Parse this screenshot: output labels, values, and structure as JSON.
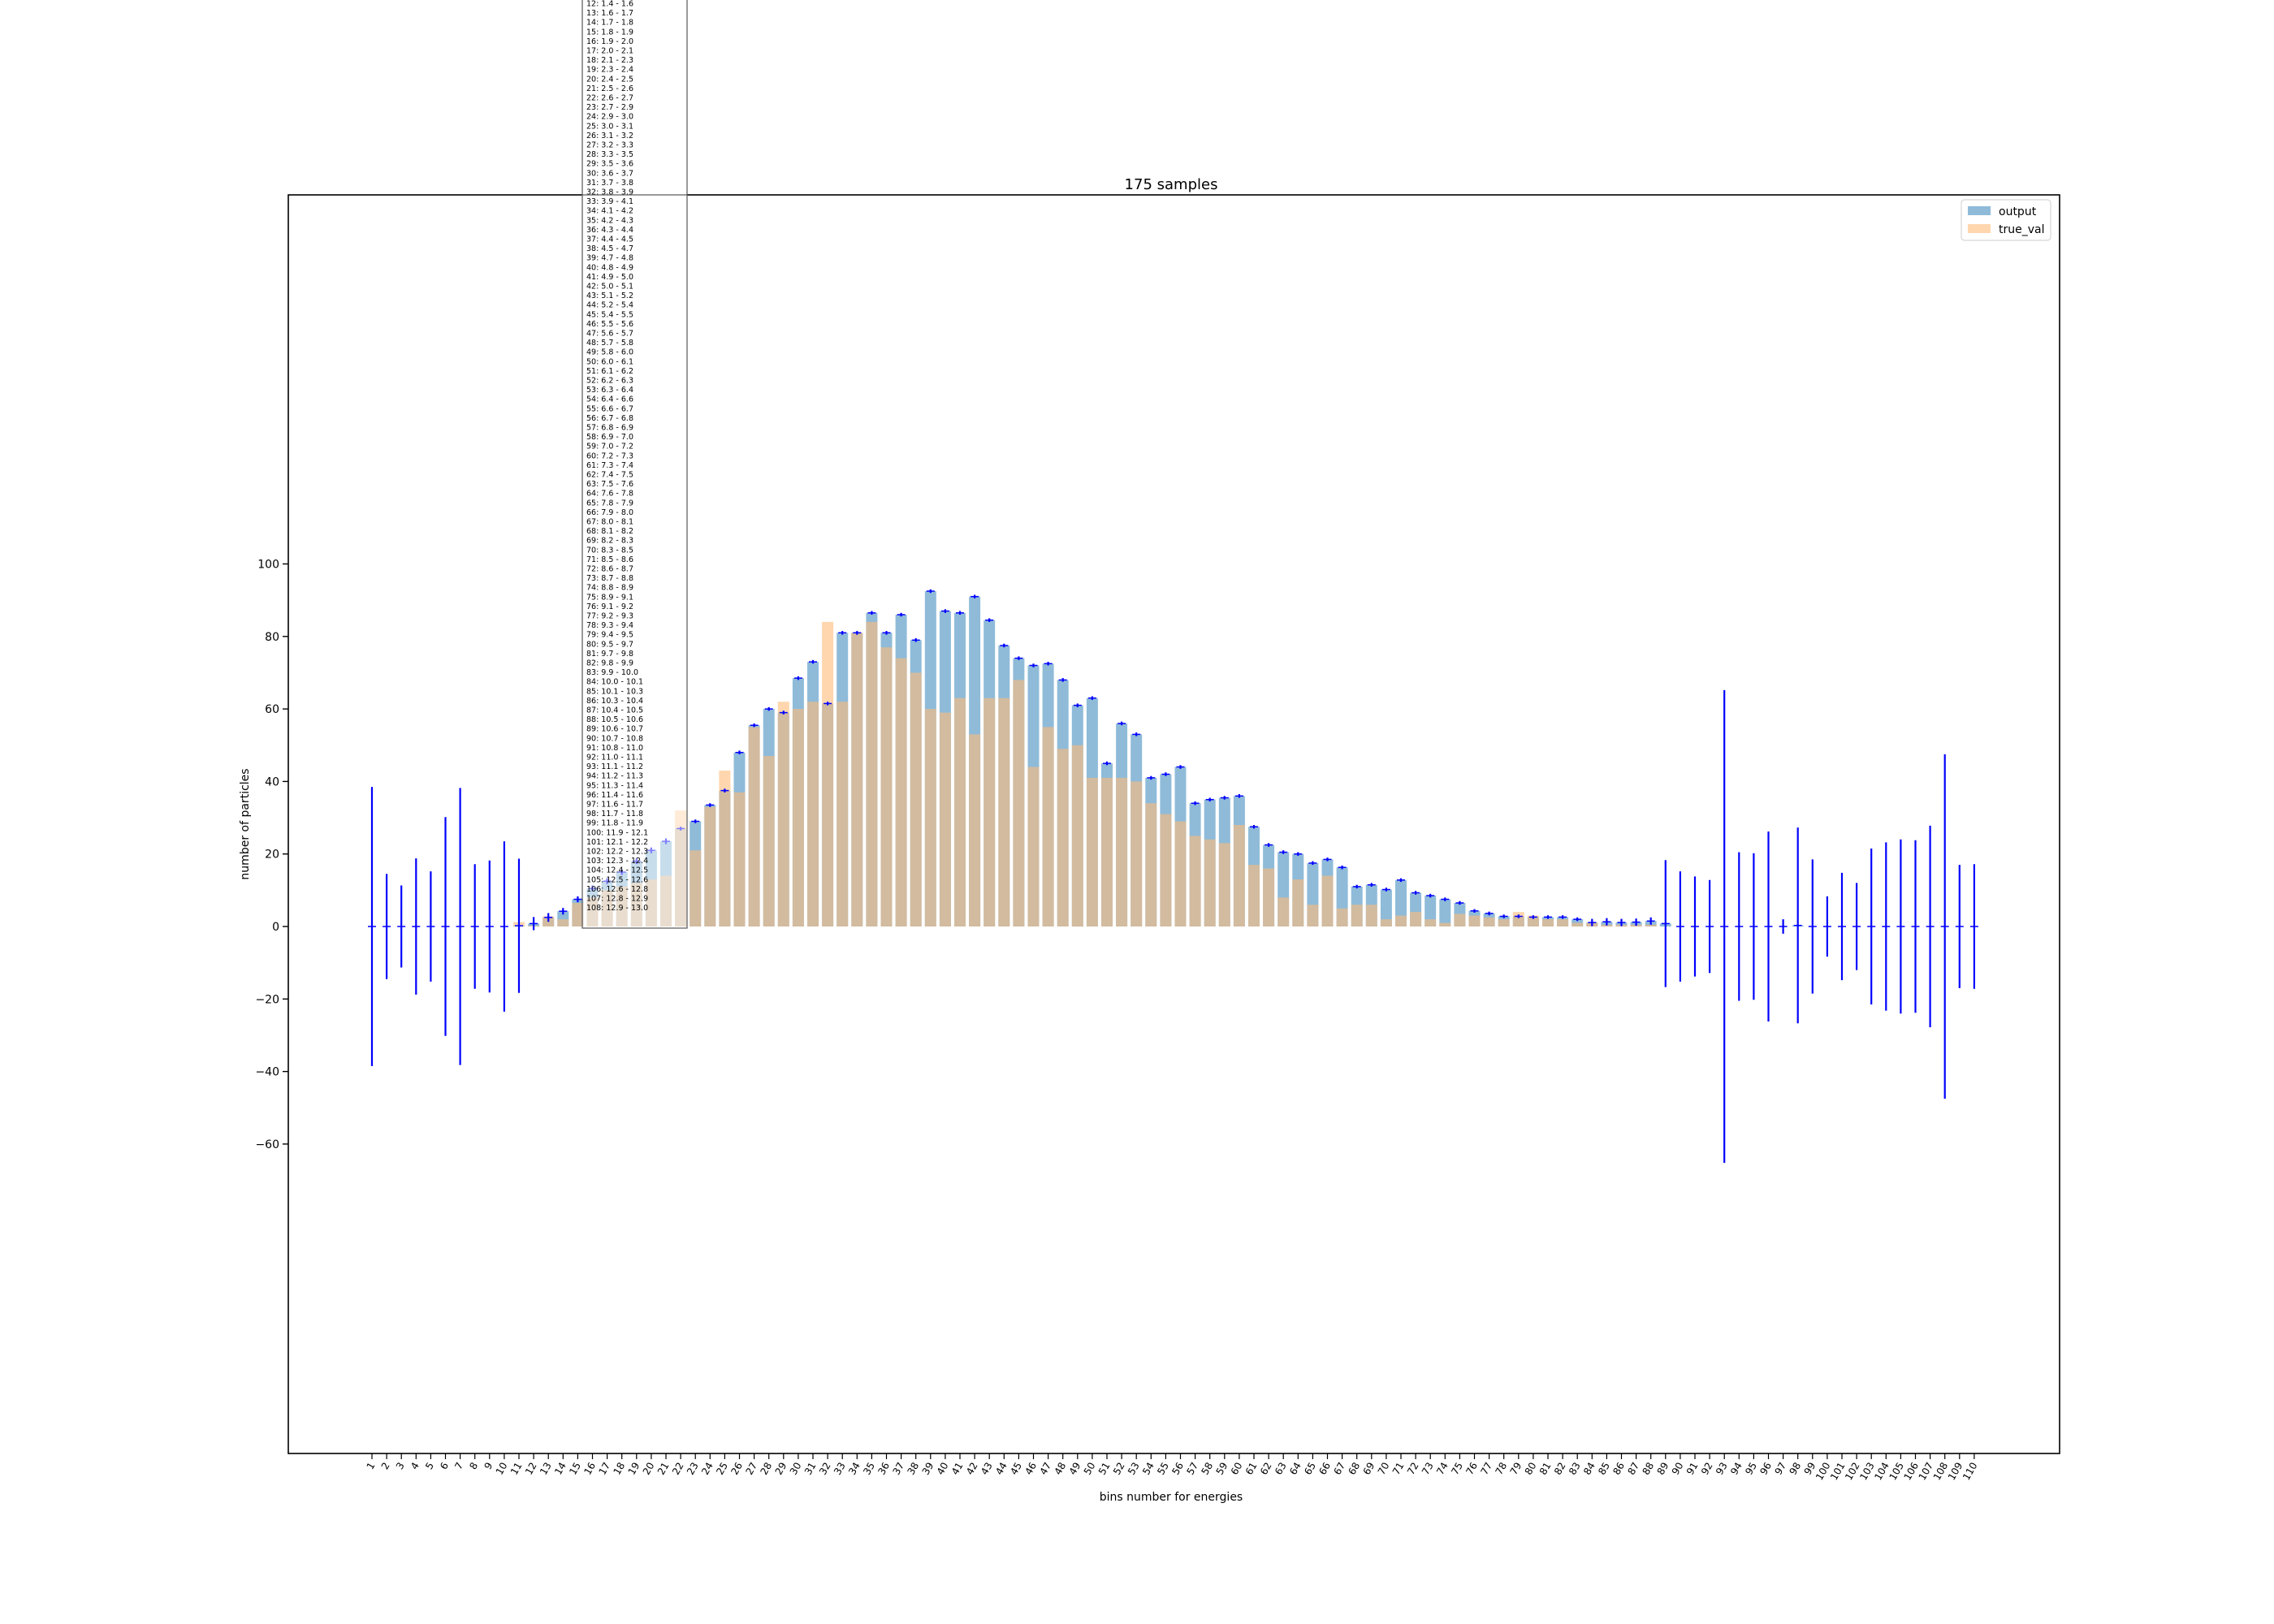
{
  "chart_data": {
    "type": "bar",
    "title": "175 samples",
    "xlabel": "bins number for energies",
    "ylabel": "number of particles",
    "ylim": [
      -73,
      101
    ],
    "yticks": [
      -60,
      -40,
      -20,
      0,
      20,
      40,
      60,
      80,
      100
    ],
    "grid": false,
    "legend_position": "top-right",
    "categories": [
      "1",
      "2",
      "3",
      "4",
      "5",
      "6",
      "7",
      "8",
      "9",
      "10",
      "11",
      "12",
      "13",
      "14",
      "15",
      "16",
      "17",
      "18",
      "19",
      "20",
      "21",
      "22",
      "23",
      "24",
      "25",
      "26",
      "27",
      "28",
      "29",
      "30",
      "31",
      "32",
      "33",
      "34",
      "35",
      "36",
      "37",
      "38",
      "39",
      "40",
      "41",
      "42",
      "43",
      "44",
      "45",
      "46",
      "47",
      "48",
      "49",
      "50",
      "51",
      "52",
      "53",
      "54",
      "55",
      "56",
      "57",
      "58",
      "59",
      "60",
      "61",
      "62",
      "63",
      "64",
      "65",
      "66",
      "67",
      "68",
      "69",
      "70",
      "71",
      "72",
      "73",
      "74",
      "75",
      "76",
      "77",
      "78",
      "79",
      "80",
      "81",
      "82",
      "83",
      "84",
      "85",
      "86",
      "87",
      "88",
      "89",
      "90",
      "91",
      "92",
      "93",
      "94",
      "95",
      "96",
      "97",
      "98",
      "99",
      "100",
      "101",
      "102",
      "103",
      "104",
      "105",
      "106",
      "107",
      "108",
      "109",
      "110"
    ],
    "series": [
      {
        "name": "output",
        "color": "#1f77b4",
        "opacity": 0.5,
        "values": [
          0,
          0,
          0,
          0,
          0,
          0,
          0,
          0,
          0,
          0,
          0.2,
          0.8,
          2.5,
          4.2,
          7.5,
          10.5,
          12.5,
          15,
          18,
          21,
          23.5,
          27,
          29,
          33.5,
          37.5,
          48,
          55.5,
          60,
          59,
          68.5,
          73,
          61.5,
          81,
          81,
          86.5,
          81,
          86,
          79,
          92.5,
          87,
          86.5,
          91,
          84.5,
          77.5,
          74,
          72,
          72.5,
          68,
          61,
          63,
          45,
          56,
          53,
          41,
          42,
          44,
          34,
          35,
          35.5,
          36,
          27.5,
          22.5,
          20.5,
          20,
          17.5,
          18.5,
          16.3,
          11,
          11.5,
          10.2,
          12.8,
          9.3,
          8.5,
          7.5,
          6.5,
          4.3,
          3.6,
          2.8,
          2.8,
          2.6,
          2.6,
          2.6,
          2,
          1.1,
          1.3,
          1.1,
          1.2,
          1.5,
          0.8,
          0,
          0,
          0,
          0,
          0,
          0,
          0,
          0,
          0.3,
          0,
          0,
          0,
          0,
          0,
          0,
          0,
          0,
          0,
          0,
          0,
          0
        ]
      },
      {
        "name": "true_val",
        "color": "#ffbb78",
        "opacity": 0.6,
        "values": [
          0,
          0,
          0,
          0,
          0,
          0,
          0,
          0,
          0,
          0,
          1.2,
          0.2,
          2.8,
          2,
          6.5,
          8,
          10,
          11,
          12,
          13,
          14,
          32,
          21,
          33,
          43,
          37,
          55,
          47,
          62,
          60,
          62,
          84,
          62,
          81,
          84,
          77,
          74,
          70,
          60,
          59,
          63,
          53,
          63,
          63,
          68,
          44,
          55,
          49,
          50,
          41,
          41,
          41,
          40,
          34,
          31,
          29,
          25,
          24,
          23,
          28,
          17,
          16,
          8,
          13,
          6,
          14,
          5,
          6,
          6,
          2,
          3,
          4,
          2,
          1,
          3.5,
          3,
          2.5,
          2,
          4,
          3,
          2,
          2,
          1,
          1,
          0.5,
          0.5,
          0.5,
          0.5,
          0,
          0,
          0,
          0,
          0,
          0,
          0,
          0,
          0,
          0,
          0,
          0,
          0,
          0,
          0,
          0,
          0,
          0,
          0,
          0,
          0,
          0
        ]
      }
    ],
    "error_bars": {
      "color": "#0000ff",
      "half_widths": [
        38.5,
        14.5,
        11.3,
        18.8,
        15.2,
        30.2,
        38.2,
        17.2,
        18.2,
        23.5,
        18.5,
        1.8,
        1.2,
        0.9,
        0.8,
        0.8,
        0.8,
        0.8,
        0.8,
        0.8,
        0.8,
        0.5,
        0.5,
        0.5,
        0.5,
        0.5,
        0.5,
        0.5,
        0.5,
        0.5,
        0.5,
        0.5,
        0.5,
        0.5,
        0.5,
        0.5,
        0.5,
        0.5,
        0.5,
        0.5,
        0.5,
        0.5,
        0.5,
        0.5,
        0.5,
        0.5,
        0.5,
        0.5,
        0.5,
        0.5,
        0.5,
        0.5,
        0.5,
        0.5,
        0.5,
        0.5,
        0.5,
        0.5,
        0.5,
        0.5,
        0.5,
        0.5,
        0.5,
        0.5,
        0.5,
        0.5,
        0.5,
        0.5,
        0.5,
        0.5,
        0.5,
        0.5,
        0.5,
        0.5,
        0.5,
        0.5,
        0.5,
        0.5,
        0.5,
        0.5,
        0.5,
        0.5,
        0.5,
        1,
        1,
        1,
        1,
        1,
        17.5,
        15.2,
        13.8,
        12.8,
        65.2,
        20.5,
        20.2,
        26.2,
        2,
        27,
        18.5,
        8.3,
        14.8,
        12,
        21.5,
        23.2,
        24,
        23.8,
        27.8,
        47.5,
        17,
        17.2
      ]
    },
    "bin_table": [
      "12: 1.4 - 1.6",
      "13: 1.6 - 1.7",
      "14: 1.7 - 1.8",
      "15: 1.8 - 1.9",
      "16: 1.9 - 2.0",
      "17: 2.0 - 2.1",
      "18: 2.1 - 2.3",
      "19: 2.3 - 2.4",
      "20: 2.4 - 2.5",
      "21: 2.5 - 2.6",
      "22: 2.6 - 2.7",
      "23: 2.7 - 2.9",
      "24: 2.9 - 3.0",
      "25: 3.0 - 3.1",
      "26: 3.1 - 3.2",
      "27: 3.2 - 3.3",
      "28: 3.3 - 3.5",
      "29: 3.5 - 3.6",
      "30: 3.6 - 3.7",
      "31: 3.7 - 3.8",
      "32: 3.8 - 3.9",
      "33: 3.9 - 4.1",
      "34: 4.1 - 4.2",
      "35: 4.2 - 4.3",
      "36: 4.3 - 4.4",
      "37: 4.4 - 4.5",
      "38: 4.5 - 4.7",
      "39: 4.7 - 4.8",
      "40: 4.8 - 4.9",
      "41: 4.9 - 5.0",
      "42: 5.0 - 5.1",
      "43: 5.1 - 5.2",
      "44: 5.2 - 5.4",
      "45: 5.4 - 5.5",
      "46: 5.5 - 5.6",
      "47: 5.6 - 5.7",
      "48: 5.7 - 5.8",
      "49: 5.8 - 6.0",
      "50: 6.0 - 6.1",
      "51: 6.1 - 6.2",
      "52: 6.2 - 6.3",
      "53: 6.3 - 6.4",
      "54: 6.4 - 6.6",
      "55: 6.6 - 6.7",
      "56: 6.7 - 6.8",
      "57: 6.8 - 6.9",
      "58: 6.9 - 7.0",
      "59: 7.0 - 7.2",
      "60: 7.2 - 7.3",
      "61: 7.3 - 7.4",
      "62: 7.4 - 7.5",
      "63: 7.5 - 7.6",
      "64: 7.6 - 7.8",
      "65: 7.8 - 7.9",
      "66: 7.9 - 8.0",
      "67: 8.0 - 8.1",
      "68: 8.1 - 8.2",
      "69: 8.2 - 8.3",
      "70: 8.3 - 8.5",
      "71: 8.5 - 8.6",
      "72: 8.6 - 8.7",
      "73: 8.7 - 8.8",
      "74: 8.8 - 8.9",
      "75: 8.9 - 9.1",
      "76: 9.1 - 9.2",
      "77: 9.2 - 9.3",
      "78: 9.3 - 9.4",
      "79: 9.4 - 9.5",
      "80: 9.5 - 9.7",
      "81: 9.7 - 9.8",
      "82: 9.8 - 9.9",
      "83: 9.9 - 10.0",
      "84: 10.0 - 10.1",
      "85: 10.1 - 10.3",
      "86: 10.3 - 10.4",
      "87: 10.4 - 10.5",
      "88: 10.5 - 10.6",
      "89: 10.6 - 10.7",
      "90: 10.7 - 10.8",
      "91: 10.8 - 11.0",
      "92: 11.0 - 11.1",
      "93: 11.1 - 11.2",
      "94: 11.2 - 11.3",
      "95: 11.3 - 11.4",
      "96: 11.4 - 11.6",
      "97: 11.6 - 11.7",
      "98: 11.7 - 11.8",
      "99: 11.8 - 11.9",
      "100: 11.9 - 12.1",
      "101: 12.1 - 12.2",
      "102: 12.2 - 12.3",
      "103: 12.3 - 12.4",
      "104: 12.4 - 12.5",
      "105: 12.5 - 12.6",
      "106: 12.6 - 12.8",
      "107: 12.8 - 12.9",
      "108: 12.9 - 13.0"
    ]
  }
}
